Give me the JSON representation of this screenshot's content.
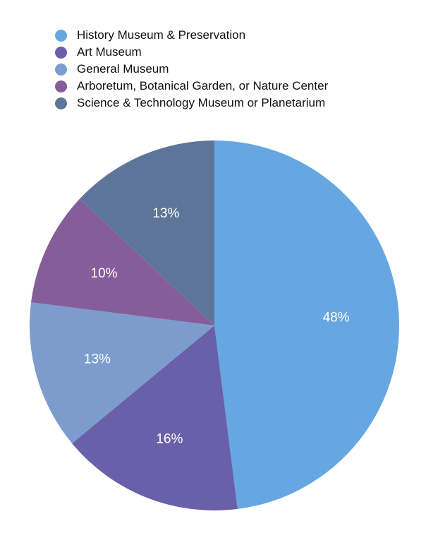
{
  "chart_data": {
    "type": "pie",
    "legend_position": "top-left",
    "start_angle": "12-o'clock",
    "direction": "clockwise",
    "categories": [
      "History Museum & Preservation",
      "Art Museum",
      "General Museum",
      "Arboretum, Botanical Garden, or Nature Center",
      "Science & Technology Museum or Planetarium"
    ],
    "values": [
      48,
      16,
      13,
      10,
      13
    ],
    "labels": [
      "48%",
      "16%",
      "13%",
      "10%",
      "13%"
    ],
    "colors": [
      "#66a7e2",
      "#6a60aa",
      "#7b9ccc",
      "#855d9b",
      "#5e759a"
    ]
  }
}
